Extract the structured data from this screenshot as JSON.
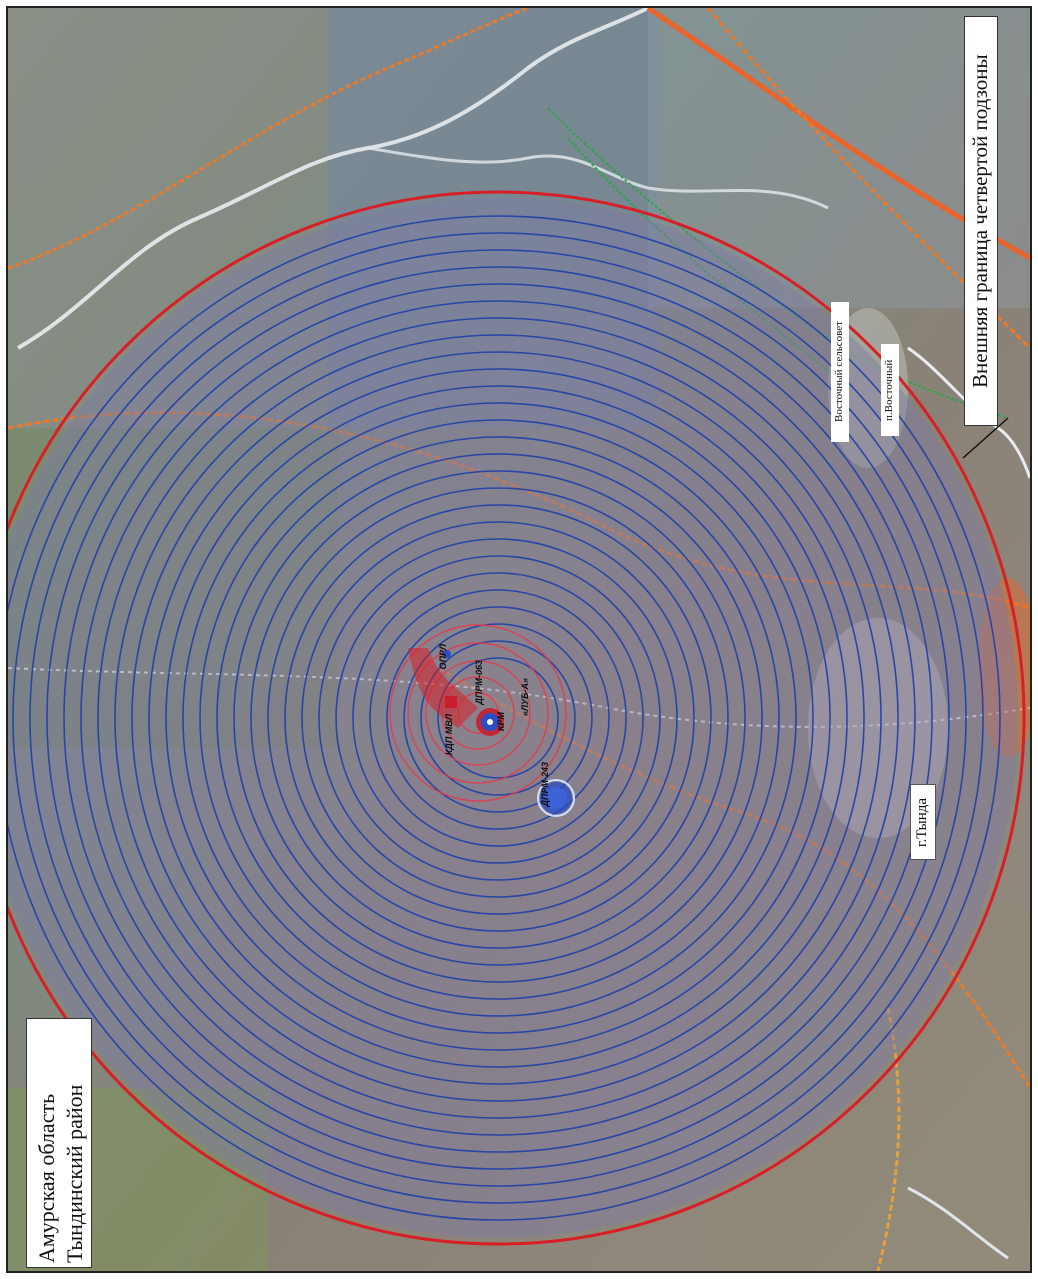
{
  "map": {
    "region_lines": [
      "Амурская область",
      "Тындинский район"
    ],
    "subzone_boundary_label": "Внешняя граница четвертой подзоны",
    "town_label": "г.Тында",
    "settlement_label": "п.Восточный",
    "council_label": "Восточный сельсовет",
    "source_labels": [
      "КДП МВЛ",
      "ДПРМ-063",
      "ДПРМ-243",
      "КРМ",
      "ОПРЛ",
      "«ЛУБ-А»"
    ],
    "colors": {
      "outer_boundary": "#d81f26",
      "subzone_rings": "#1e3fa8",
      "inner_rings": "#e8374a",
      "road": "#e87a2a",
      "river": "#e8ecf0",
      "rail": "#e6a64a",
      "power_line": "#2fa34a",
      "marker_blue": "#2a4fc4",
      "marker_red": "#c81e2e"
    },
    "icons": [
      "location-marker-icon",
      "antenna-marker-icon"
    ]
  }
}
